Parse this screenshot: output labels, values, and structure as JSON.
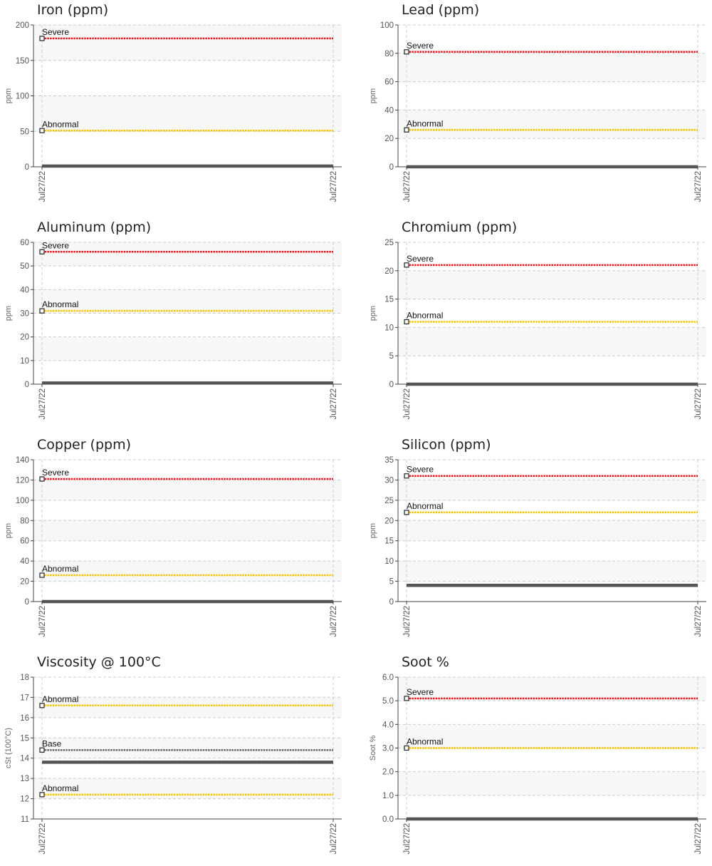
{
  "chart_data": [
    {
      "type": "line",
      "title": "Iron (ppm)",
      "ylabel": "ppm",
      "ylim": [
        0,
        200
      ],
      "yticks": [
        0,
        50,
        100,
        150,
        200
      ],
      "x": [
        "Jul27/22",
        "Jul27/22"
      ],
      "series": [
        {
          "values": [
            1,
            1
          ]
        }
      ],
      "limits": [
        {
          "label": "Severe",
          "value": 181,
          "color": "#e8141e"
        },
        {
          "label": "Abnormal",
          "value": 51,
          "color": "#f5c400"
        }
      ]
    },
    {
      "type": "line",
      "title": "Lead (ppm)",
      "ylabel": "ppm",
      "ylim": [
        0,
        100
      ],
      "yticks": [
        0,
        20,
        40,
        60,
        80,
        100
      ],
      "x": [
        "Jul27/22",
        "Jul27/22"
      ],
      "series": [
        {
          "values": [
            0,
            0
          ]
        }
      ],
      "limits": [
        {
          "label": "Severe",
          "value": 81,
          "color": "#e8141e"
        },
        {
          "label": "Abnormal",
          "value": 26,
          "color": "#f5c400"
        }
      ]
    },
    {
      "type": "line",
      "title": "Aluminum (ppm)",
      "ylabel": "ppm",
      "ylim": [
        0,
        60
      ],
      "yticks": [
        0,
        10,
        20,
        30,
        40,
        50,
        60
      ],
      "x": [
        "Jul27/22",
        "Jul27/22"
      ],
      "series": [
        {
          "values": [
            0.5,
            0.5
          ]
        }
      ],
      "limits": [
        {
          "label": "Severe",
          "value": 56,
          "color": "#e8141e"
        },
        {
          "label": "Abnormal",
          "value": 31,
          "color": "#f5c400"
        }
      ]
    },
    {
      "type": "line",
      "title": "Chromium (ppm)",
      "ylabel": "ppm",
      "ylim": [
        0,
        25
      ],
      "yticks": [
        0,
        5,
        10,
        15,
        20,
        25
      ],
      "x": [
        "Jul27/22",
        "Jul27/22"
      ],
      "series": [
        {
          "values": [
            0,
            0
          ]
        }
      ],
      "limits": [
        {
          "label": "Severe",
          "value": 21,
          "color": "#e8141e"
        },
        {
          "label": "Abnormal",
          "value": 11,
          "color": "#f5c400"
        }
      ]
    },
    {
      "type": "line",
      "title": "Copper (ppm)",
      "ylabel": "ppm",
      "ylim": [
        0,
        140
      ],
      "yticks": [
        0,
        20,
        40,
        60,
        80,
        100,
        120,
        140
      ],
      "x": [
        "Jul27/22",
        "Jul27/22"
      ],
      "series": [
        {
          "values": [
            0,
            0
          ]
        }
      ],
      "limits": [
        {
          "label": "Severe",
          "value": 121,
          "color": "#e8141e"
        },
        {
          "label": "Abnormal",
          "value": 26,
          "color": "#f5c400"
        }
      ]
    },
    {
      "type": "line",
      "title": "Silicon (ppm)",
      "ylabel": "ppm",
      "ylim": [
        0,
        35
      ],
      "yticks": [
        0,
        5,
        10,
        15,
        20,
        25,
        30,
        35
      ],
      "x": [
        "Jul27/22",
        "Jul27/22"
      ],
      "series": [
        {
          "values": [
            4,
            4
          ]
        }
      ],
      "limits": [
        {
          "label": "Severe",
          "value": 31,
          "color": "#e8141e"
        },
        {
          "label": "Abnormal",
          "value": 22,
          "color": "#f5c400"
        }
      ]
    },
    {
      "type": "line",
      "title": "Viscosity @ 100°C",
      "ylabel": "cSt (100°C)",
      "ylim": [
        11,
        18
      ],
      "yticks": [
        11,
        12,
        13,
        14,
        15,
        16,
        17,
        18
      ],
      "x": [
        "Jul27/22",
        "Jul27/22"
      ],
      "series": [
        {
          "values": [
            13.8,
            13.8
          ]
        }
      ],
      "limits": [
        {
          "label": "Abnormal",
          "value": 16.6,
          "color": "#f5c400"
        },
        {
          "label": "Base",
          "value": 14.4,
          "color": "#666666"
        },
        {
          "label": "Abnormal",
          "value": 12.2,
          "color": "#f5c400"
        }
      ]
    },
    {
      "type": "line",
      "title": "Soot %",
      "ylabel": "Soot %",
      "ylim": [
        0,
        6
      ],
      "yticks": [
        "0.0",
        "1.0",
        "2.0",
        "3.0",
        "4.0",
        "5.0",
        "6.0"
      ],
      "x": [
        "Jul27/22",
        "Jul27/22"
      ],
      "series": [
        {
          "values": [
            0,
            0
          ]
        }
      ],
      "limits": [
        {
          "label": "Severe",
          "value": 5.1,
          "color": "#e8141e"
        },
        {
          "label": "Abnormal",
          "value": 3.0,
          "color": "#f5c400"
        }
      ]
    }
  ],
  "colors": {
    "series_line": "#555555",
    "grid": "#cccccc",
    "band": "#f7f7f7",
    "axis": "#444444"
  }
}
